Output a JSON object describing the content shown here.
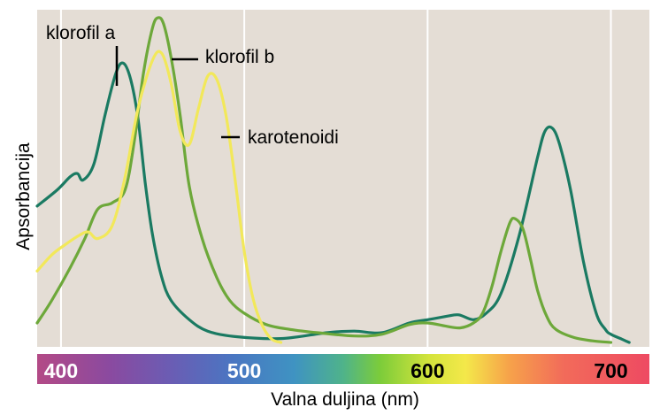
{
  "chart_data": {
    "type": "line",
    "xlabel": "Valna duljina (nm)",
    "ylabel": "Apsorbancija",
    "xlim": [
      387,
      721
    ],
    "ylim": [
      0,
      1.0
    ],
    "grid": true,
    "x_ticks": [
      400,
      500,
      600,
      700
    ],
    "x_tick_colors": [
      "#ffffff",
      "#ffffff",
      "#000000",
      "#000000"
    ],
    "series": [
      {
        "name": "klorofil a",
        "color": "#1a7a62",
        "x": [
          387,
          398,
          405,
          409,
          412,
          418,
          424,
          430,
          434,
          438,
          442,
          446,
          450,
          455,
          460,
          470,
          480,
          495,
          520,
          545,
          560,
          575,
          590,
          600,
          610,
          617,
          625,
          632,
          640,
          650,
          660,
          664,
          668,
          672,
          678,
          685,
          692,
          697,
          700,
          706,
          710
        ],
        "y": [
          0.42,
          0.47,
          0.51,
          0.52,
          0.5,
          0.55,
          0.7,
          0.83,
          0.86,
          0.81,
          0.69,
          0.49,
          0.33,
          0.2,
          0.13,
          0.07,
          0.035,
          0.018,
          0.012,
          0.03,
          0.035,
          0.03,
          0.06,
          0.07,
          0.08,
          0.085,
          0.07,
          0.09,
          0.15,
          0.33,
          0.57,
          0.65,
          0.66,
          0.61,
          0.47,
          0.25,
          0.09,
          0.04,
          0.025,
          0.01,
          0.0
        ]
      },
      {
        "name": "klorofil b",
        "color": "#6da83a",
        "x": [
          387,
          395,
          405,
          413,
          420,
          428,
          435,
          440,
          445,
          450,
          453,
          456,
          460,
          465,
          470,
          477,
          485,
          492,
          500,
          512,
          525,
          540,
          560,
          575,
          590,
          600,
          610,
          618,
          625,
          630,
          635,
          640,
          645,
          648,
          652,
          656,
          660,
          665,
          670,
          680,
          690,
          700
        ],
        "y": [
          0.06,
          0.13,
          0.23,
          0.32,
          0.41,
          0.43,
          0.47,
          0.62,
          0.83,
          0.97,
          1.0,
          0.98,
          0.88,
          0.7,
          0.48,
          0.32,
          0.2,
          0.13,
          0.09,
          0.055,
          0.04,
          0.03,
          0.02,
          0.025,
          0.055,
          0.06,
          0.05,
          0.045,
          0.06,
          0.09,
          0.17,
          0.28,
          0.37,
          0.38,
          0.35,
          0.26,
          0.16,
          0.08,
          0.04,
          0.015,
          0.005,
          0.0
        ]
      },
      {
        "name": "karotenoidi",
        "color": "#f2e85a",
        "x": [
          387,
          395,
          402,
          410,
          415,
          420,
          428,
          435,
          442,
          450,
          455,
          460,
          465,
          470,
          475,
          480,
          485,
          490,
          495,
          500,
          505,
          510,
          515,
          520
        ],
        "y": [
          0.22,
          0.27,
          0.3,
          0.33,
          0.34,
          0.32,
          0.36,
          0.51,
          0.72,
          0.87,
          0.89,
          0.8,
          0.65,
          0.61,
          0.72,
          0.82,
          0.81,
          0.7,
          0.5,
          0.28,
          0.13,
          0.05,
          0.01,
          0.0
        ]
      }
    ],
    "annotations": [
      {
        "text": "klorofil a",
        "series": "klorofil a"
      },
      {
        "text": "klorofil b",
        "series": "klorofil b"
      },
      {
        "text": "karotenoidi",
        "series": "karotenoidi"
      }
    ]
  }
}
